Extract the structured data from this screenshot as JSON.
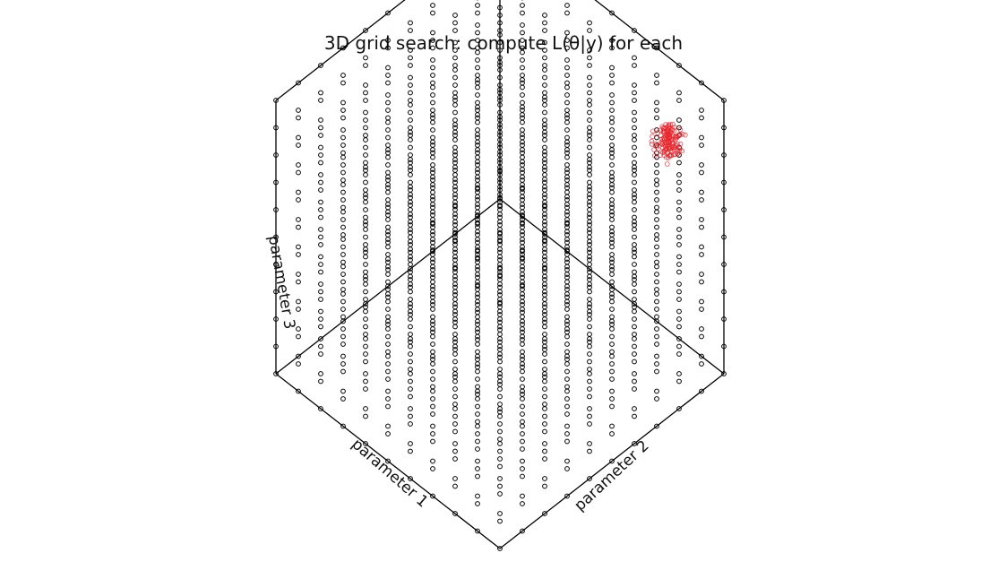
{
  "chart_data": {
    "type": "scatter",
    "title": "3D grid search: compute L(θ|y) for each",
    "xlabel": "parameter 1",
    "ylabel": "parameter 2",
    "zlabel": "parameter 3",
    "projection": "isometric cube (corner view)",
    "grid": {
      "description": "regular 3D grid of candidate parameter combinations, drawn as open circles",
      "points_per_axis": 11,
      "range": [
        0,
        1
      ],
      "marker": "open-circle",
      "marker_color": "#000000"
    },
    "highlight": {
      "description": "cluster of grid points with highest likelihood",
      "color": "#e8262d",
      "center": [
        0.2,
        0.95,
        0.75
      ],
      "spread": 0.06
    }
  }
}
